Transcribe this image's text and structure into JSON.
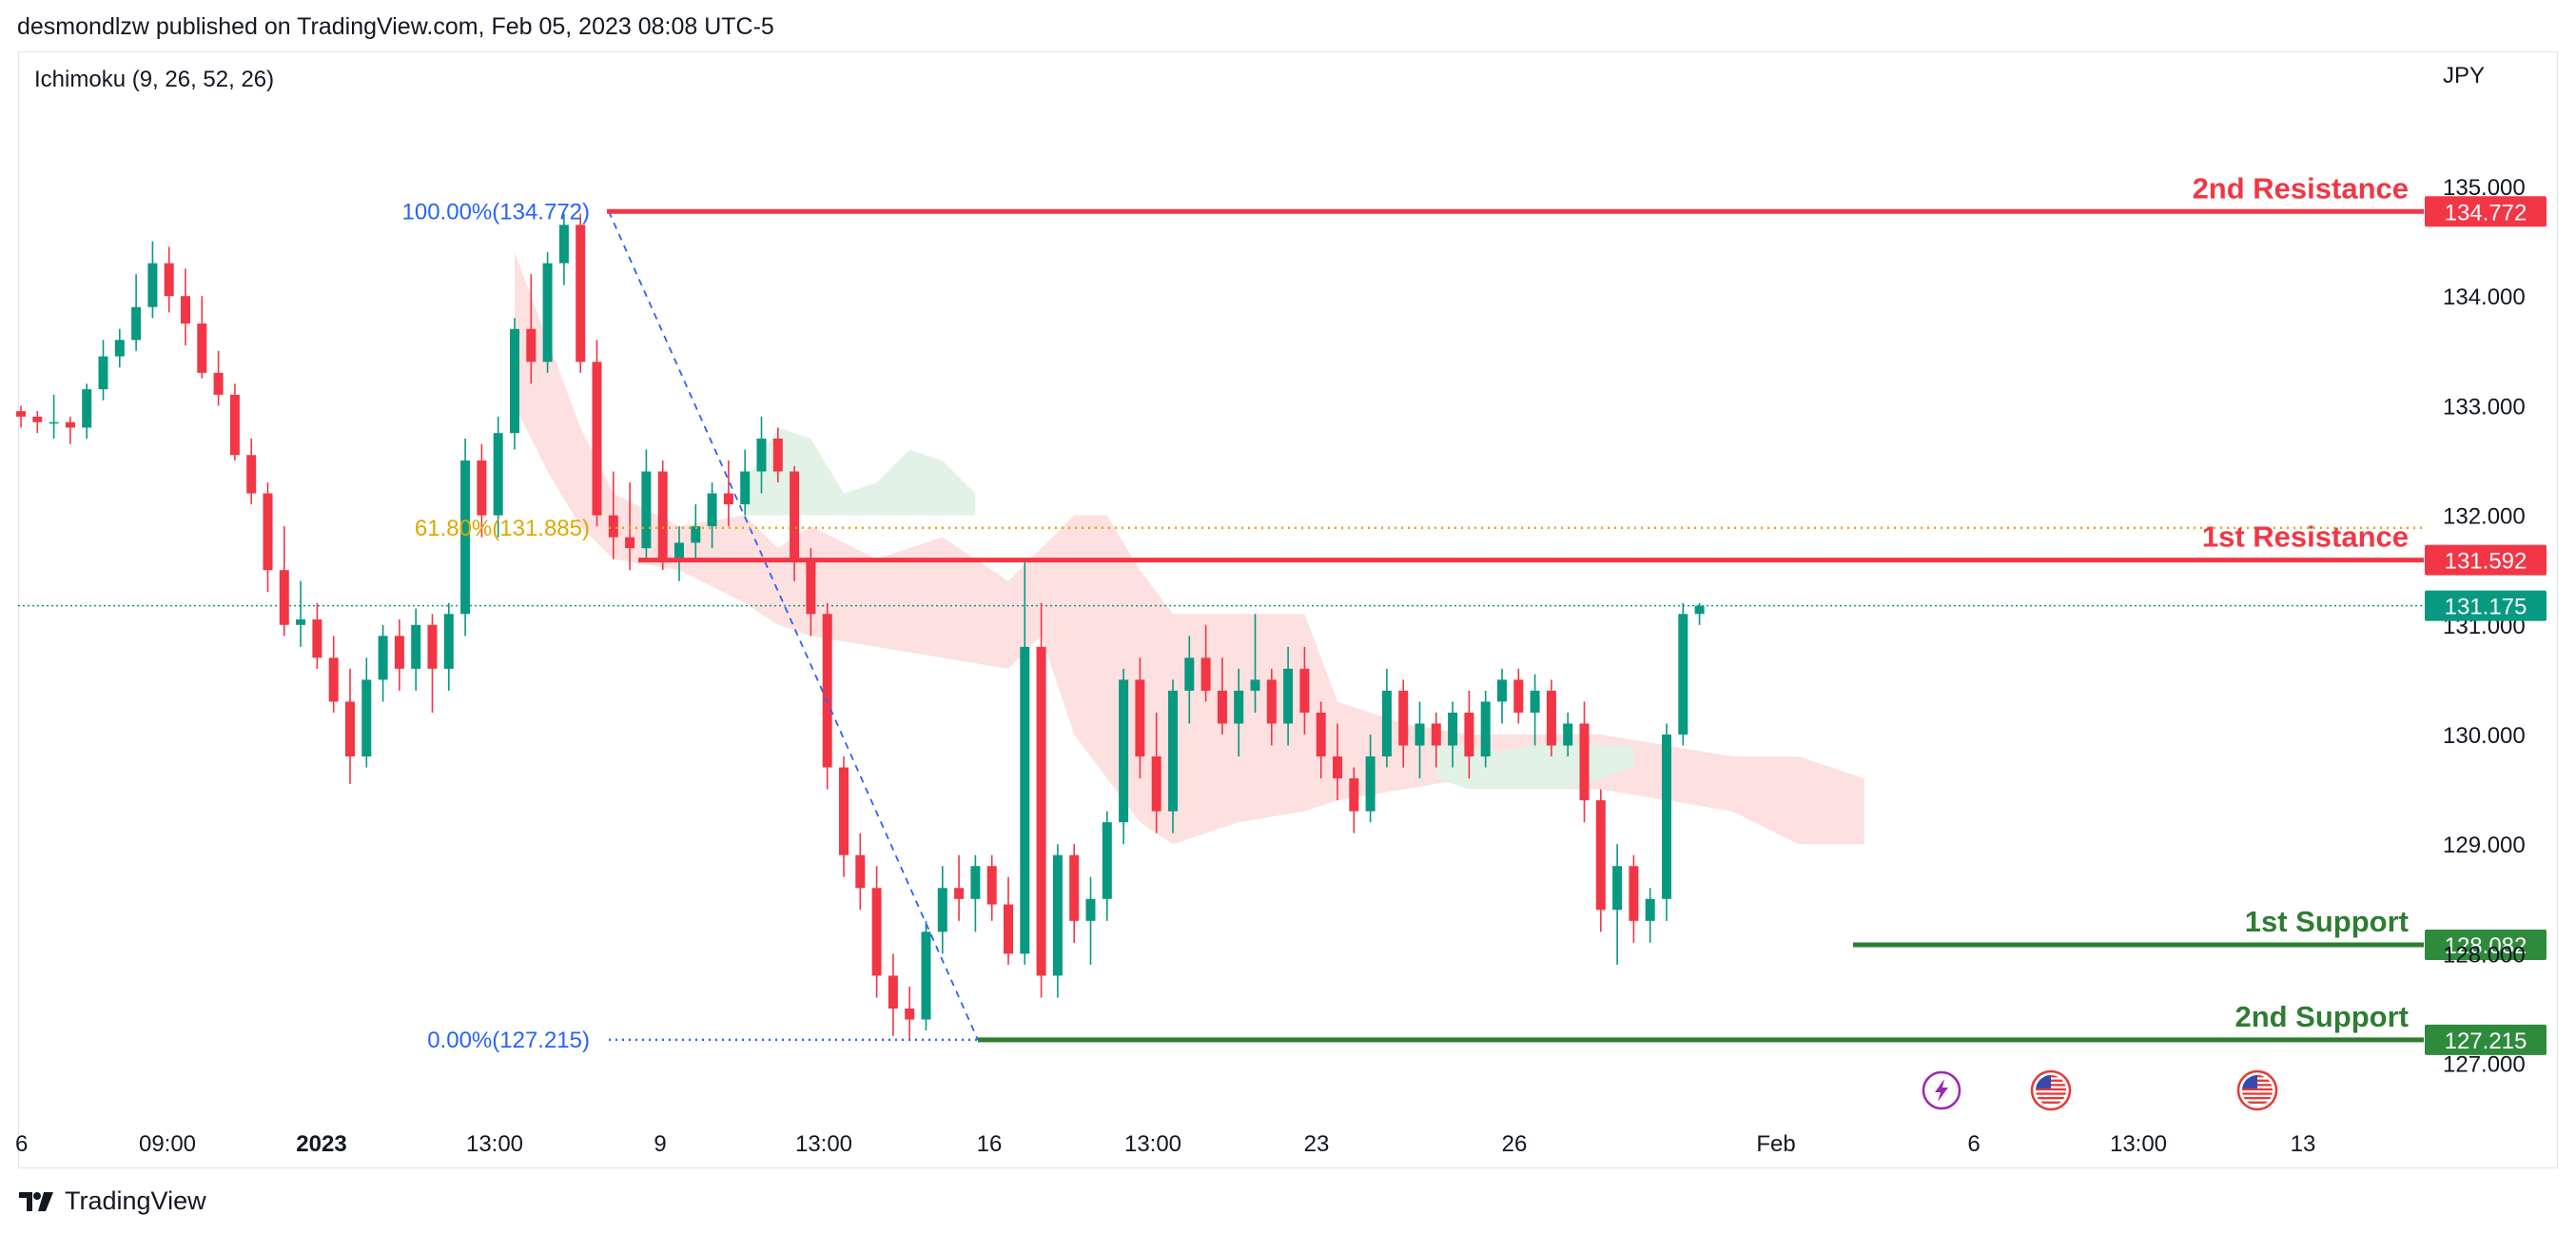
{
  "header": {
    "text": "desmondlzw published on TradingView.com, Feb 05, 2023 08:08 UTC-5"
  },
  "indicator": {
    "label": "Ichimoku (9, 26, 52, 26)"
  },
  "currency": "JPY",
  "footer": {
    "brand": "TradingView",
    "logo_icon": "tradingview-logo-icon"
  },
  "colors": {
    "up": "#089981",
    "down": "#f23645",
    "resistance": "#f23645",
    "support": "#2e7d32",
    "support_badge": "#2e8b3c",
    "current": "#089981",
    "fib_100": "#2962ff",
    "fib_618": "#e0a800",
    "cloud_bear": "#fde0e0",
    "cloud_bull": "#e3f2e6"
  },
  "chart_data": {
    "type": "candlestick",
    "symbol_currency": "JPY",
    "y_axis": {
      "ticks": [
        "135.000",
        "134.000",
        "133.000",
        "132.000",
        "131.000",
        "130.000",
        "129.000",
        "128.000",
        "127.000"
      ],
      "range": [
        126.55,
        135.75
      ]
    },
    "x_axis": {
      "ticks": [
        {
          "label": "6",
          "bold": false
        },
        {
          "label": "09:00",
          "bold": false
        },
        {
          "label": "2023",
          "bold": true
        },
        {
          "label": "13:00",
          "bold": false
        },
        {
          "label": "9",
          "bold": false
        },
        {
          "label": "13:00",
          "bold": false
        },
        {
          "label": "16",
          "bold": false
        },
        {
          "label": "13:00",
          "bold": false
        },
        {
          "label": "23",
          "bold": false
        },
        {
          "label": "26",
          "bold": false
        },
        {
          "label": "Feb",
          "bold": false
        },
        {
          "label": "6",
          "bold": false
        },
        {
          "label": "13:00",
          "bold": false
        },
        {
          "label": "13",
          "bold": false
        }
      ]
    },
    "levels": [
      {
        "name": "2nd Resistance",
        "value": 134.772,
        "label": "134.772",
        "kind": "resistance"
      },
      {
        "name": "1st Resistance",
        "value": 131.592,
        "label": "131.592",
        "kind": "resistance"
      },
      {
        "name": "1st Support",
        "value": 128.082,
        "label": "128.082",
        "kind": "support"
      },
      {
        "name": "2nd Support",
        "value": 127.215,
        "label": "127.215",
        "kind": "support"
      }
    ],
    "current_price": {
      "value": 131.175,
      "label": "131.175"
    },
    "fibonacci": [
      {
        "label": "100.00%(134.772)",
        "value": 134.772
      },
      {
        "label": "61.80%(131.885)",
        "value": 131.885
      },
      {
        "label": "0.00%(127.215)",
        "value": 127.215
      }
    ],
    "candles": [
      [
        132.95,
        133.0,
        132.8,
        132.9
      ],
      [
        132.9,
        132.95,
        132.75,
        132.85
      ],
      [
        132.85,
        133.1,
        132.7,
        132.85
      ],
      [
        132.85,
        132.9,
        132.65,
        132.8
      ],
      [
        132.8,
        133.2,
        132.7,
        133.15
      ],
      [
        133.15,
        133.6,
        133.05,
        133.45
      ],
      [
        133.45,
        133.7,
        133.35,
        133.6
      ],
      [
        133.6,
        134.2,
        133.5,
        133.9
      ],
      [
        133.9,
        134.5,
        133.8,
        134.3
      ],
      [
        134.3,
        134.45,
        133.85,
        134.0
      ],
      [
        134.0,
        134.25,
        133.55,
        133.75
      ],
      [
        133.75,
        134.0,
        133.25,
        133.3
      ],
      [
        133.3,
        133.5,
        133.0,
        133.1
      ],
      [
        133.1,
        133.2,
        132.5,
        132.55
      ],
      [
        132.55,
        132.7,
        132.1,
        132.2
      ],
      [
        132.2,
        132.3,
        131.3,
        131.5
      ],
      [
        131.5,
        131.9,
        130.9,
        131.0
      ],
      [
        131.0,
        131.4,
        130.8,
        131.05
      ],
      [
        131.05,
        131.2,
        130.6,
        130.7
      ],
      [
        130.7,
        130.9,
        130.2,
        130.3
      ],
      [
        130.3,
        130.6,
        129.55,
        129.8
      ],
      [
        129.8,
        130.7,
        129.7,
        130.5
      ],
      [
        130.5,
        131.0,
        130.3,
        130.9
      ],
      [
        130.9,
        131.05,
        130.4,
        130.6
      ],
      [
        130.6,
        131.15,
        130.4,
        131.0
      ],
      [
        131.0,
        131.1,
        130.2,
        130.6
      ],
      [
        130.6,
        131.2,
        130.4,
        131.1
      ],
      [
        131.1,
        132.7,
        130.9,
        132.5
      ],
      [
        132.5,
        132.65,
        131.8,
        132.0
      ],
      [
        132.0,
        132.9,
        131.8,
        132.75
      ],
      [
        132.75,
        133.8,
        132.6,
        133.7
      ],
      [
        133.7,
        134.2,
        133.2,
        133.4
      ],
      [
        133.4,
        134.4,
        133.3,
        134.3
      ],
      [
        134.3,
        134.75,
        134.1,
        134.65
      ],
      [
        134.65,
        134.75,
        133.3,
        133.4
      ],
      [
        133.4,
        133.6,
        131.9,
        132.0
      ],
      [
        132.0,
        132.4,
        131.6,
        131.8
      ],
      [
        131.8,
        132.3,
        131.5,
        131.7
      ],
      [
        131.7,
        132.6,
        131.6,
        132.4
      ],
      [
        132.4,
        132.5,
        131.5,
        131.6
      ],
      [
        131.6,
        131.9,
        131.4,
        131.75
      ],
      [
        131.75,
        132.1,
        131.6,
        131.9
      ],
      [
        131.9,
        132.3,
        131.7,
        132.2
      ],
      [
        132.2,
        132.5,
        131.9,
        132.1
      ],
      [
        132.1,
        132.6,
        132.0,
        132.4
      ],
      [
        132.4,
        132.9,
        132.2,
        132.7
      ],
      [
        132.7,
        132.8,
        132.3,
        132.4
      ],
      [
        132.4,
        132.45,
        131.4,
        131.6
      ],
      [
        131.6,
        131.7,
        130.9,
        131.1
      ],
      [
        131.1,
        131.2,
        129.5,
        129.7
      ],
      [
        129.7,
        129.8,
        128.7,
        128.9
      ],
      [
        128.9,
        129.1,
        128.4,
        128.6
      ],
      [
        128.6,
        128.8,
        127.6,
        127.8
      ],
      [
        127.8,
        128.0,
        127.25,
        127.5
      ],
      [
        127.5,
        127.7,
        127.22,
        127.4
      ],
      [
        127.4,
        128.3,
        127.3,
        128.2
      ],
      [
        128.2,
        128.8,
        128.0,
        128.6
      ],
      [
        128.6,
        128.9,
        128.3,
        128.5
      ],
      [
        128.5,
        128.9,
        128.2,
        128.8
      ],
      [
        128.8,
        128.9,
        128.3,
        128.45
      ],
      [
        128.45,
        128.7,
        127.9,
        128.0
      ],
      [
        128.0,
        131.6,
        127.9,
        130.8
      ],
      [
        130.8,
        131.2,
        127.6,
        127.8
      ],
      [
        127.8,
        129.0,
        127.6,
        128.9
      ],
      [
        128.9,
        129.0,
        128.1,
        128.3
      ],
      [
        128.3,
        128.7,
        127.9,
        128.5
      ],
      [
        128.5,
        129.3,
        128.3,
        129.2
      ],
      [
        129.2,
        130.6,
        129.0,
        130.5
      ],
      [
        130.5,
        130.7,
        129.6,
        129.8
      ],
      [
        129.8,
        130.2,
        129.1,
        129.3
      ],
      [
        129.3,
        130.5,
        129.1,
        130.4
      ],
      [
        130.4,
        130.9,
        130.1,
        130.7
      ],
      [
        130.7,
        131.0,
        130.3,
        130.4
      ],
      [
        130.4,
        130.7,
        130.0,
        130.1
      ],
      [
        130.1,
        130.6,
        129.8,
        130.4
      ],
      [
        130.4,
        131.1,
        130.2,
        130.5
      ],
      [
        130.5,
        130.6,
        129.9,
        130.1
      ],
      [
        130.1,
        130.8,
        129.9,
        130.6
      ],
      [
        130.6,
        130.8,
        130.0,
        130.2
      ],
      [
        130.2,
        130.3,
        129.6,
        129.8
      ],
      [
        129.8,
        130.1,
        129.4,
        129.6
      ],
      [
        129.6,
        129.7,
        129.1,
        129.3
      ],
      [
        129.3,
        130.0,
        129.2,
        129.8
      ],
      [
        129.8,
        130.6,
        129.7,
        130.4
      ],
      [
        130.4,
        130.5,
        129.7,
        129.9
      ],
      [
        129.9,
        130.3,
        129.6,
        130.1
      ],
      [
        130.1,
        130.2,
        129.7,
        129.9
      ],
      [
        129.9,
        130.3,
        129.7,
        130.2
      ],
      [
        130.2,
        130.4,
        129.6,
        129.8
      ],
      [
        129.8,
        130.4,
        129.7,
        130.3
      ],
      [
        130.3,
        130.6,
        130.1,
        130.5
      ],
      [
        130.5,
        130.6,
        130.1,
        130.2
      ],
      [
        130.2,
        130.55,
        129.9,
        130.4
      ],
      [
        130.4,
        130.5,
        129.8,
        129.9
      ],
      [
        129.9,
        130.2,
        129.8,
        130.1
      ],
      [
        130.1,
        130.3,
        129.2,
        129.4
      ],
      [
        129.4,
        129.5,
        128.2,
        128.4
      ],
      [
        128.4,
        129.0,
        127.9,
        128.8
      ],
      [
        128.8,
        128.9,
        128.1,
        128.3
      ],
      [
        128.3,
        128.6,
        128.1,
        128.5
      ],
      [
        128.5,
        130.1,
        128.3,
        130.0
      ],
      [
        130.0,
        131.2,
        129.9,
        131.1
      ],
      [
        131.1,
        131.2,
        131.0,
        131.175
      ]
    ],
    "kumo_bear_top": [
      [
        0,
        134.4
      ],
      [
        14,
        134.4
      ],
      [
        22,
        134.4
      ],
      [
        30,
        134.4
      ],
      [
        32,
        133.6
      ],
      [
        34,
        132.8
      ],
      [
        36,
        132.2
      ],
      [
        40,
        131.9
      ],
      [
        44,
        132.0
      ],
      [
        46,
        131.7
      ],
      [
        48,
        131.9
      ],
      [
        52,
        131.6
      ],
      [
        56,
        131.8
      ],
      [
        60,
        131.4
      ],
      [
        62,
        131.7
      ],
      [
        64,
        132.0
      ],
      [
        66,
        132.0
      ],
      [
        68,
        131.5
      ],
      [
        70,
        131.1
      ],
      [
        74,
        131.1
      ],
      [
        78,
        131.1
      ],
      [
        80,
        130.3
      ],
      [
        84,
        130.1
      ],
      [
        88,
        130.0
      ],
      [
        92,
        130.0
      ],
      [
        96,
        130.0
      ],
      [
        100,
        129.9
      ],
      [
        104,
        129.8
      ],
      [
        108,
        129.8
      ],
      [
        112,
        129.6
      ]
    ],
    "kumo_bear_bottom": [
      [
        0,
        133.5
      ],
      [
        14,
        133.5
      ],
      [
        22,
        133.5
      ],
      [
        30,
        133.0
      ],
      [
        32,
        132.4
      ],
      [
        34,
        131.9
      ],
      [
        36,
        131.6
      ],
      [
        40,
        131.5
      ],
      [
        44,
        131.2
      ],
      [
        46,
        131.0
      ],
      [
        48,
        130.9
      ],
      [
        52,
        130.8
      ],
      [
        56,
        130.7
      ],
      [
        60,
        130.6
      ],
      [
        62,
        130.9
      ],
      [
        64,
        130.0
      ],
      [
        66,
        129.6
      ],
      [
        68,
        129.2
      ],
      [
        70,
        129.0
      ],
      [
        74,
        129.2
      ],
      [
        78,
        129.3
      ],
      [
        80,
        129.4
      ],
      [
        84,
        129.5
      ],
      [
        88,
        129.6
      ],
      [
        92,
        129.5
      ],
      [
        96,
        129.5
      ],
      [
        100,
        129.4
      ],
      [
        104,
        129.3
      ],
      [
        108,
        129.0
      ],
      [
        112,
        129.0
      ]
    ],
    "kumo_bull_top": [
      [
        44,
        132.3
      ],
      [
        46,
        132.8
      ],
      [
        48,
        132.7
      ],
      [
        50,
        132.2
      ],
      [
        52,
        132.3
      ],
      [
        54,
        132.6
      ],
      [
        56,
        132.5
      ],
      [
        58,
        132.2
      ],
      [
        86,
        129.9
      ],
      [
        88,
        129.9
      ],
      [
        90,
        129.85
      ],
      [
        92,
        129.9
      ],
      [
        94,
        129.95
      ],
      [
        96,
        129.9
      ],
      [
        98,
        129.9
      ]
    ],
    "kumo_bull_bottom": [
      [
        44,
        132.0
      ],
      [
        46,
        132.0
      ],
      [
        48,
        132.0
      ],
      [
        50,
        132.0
      ],
      [
        52,
        132.0
      ],
      [
        54,
        132.0
      ],
      [
        56,
        132.0
      ],
      [
        58,
        132.0
      ],
      [
        86,
        129.6
      ],
      [
        88,
        129.5
      ],
      [
        90,
        129.5
      ],
      [
        92,
        129.5
      ],
      [
        94,
        129.5
      ],
      [
        96,
        129.6
      ],
      [
        98,
        129.7
      ]
    ],
    "events": [
      {
        "icon": "lightning-event-icon"
      },
      {
        "icon": "us-flag-event-icon"
      },
      {
        "icon": "us-flag-event-icon"
      }
    ]
  }
}
